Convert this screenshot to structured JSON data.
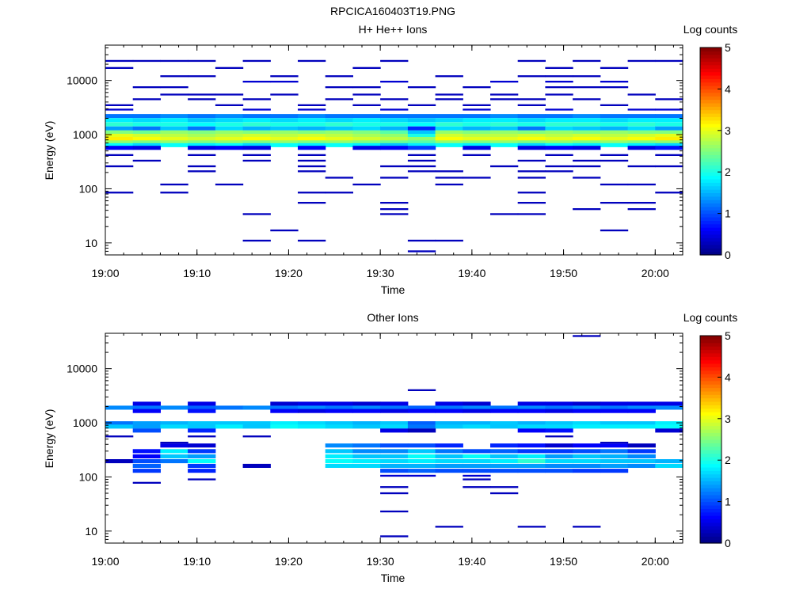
{
  "figure_title": "RPCICA160403T19.PNG",
  "chart_data": [
    {
      "type": "heatmap",
      "title": "H+ He++ Ions",
      "xlabel": "Time",
      "ylabel": "Energy (eV)",
      "xlim": [
        "19:00",
        "20:03"
      ],
      "x_ticks": [
        "19:00",
        "19:10",
        "19:20",
        "19:30",
        "19:40",
        "19:50",
        "20:00"
      ],
      "ylim": [
        6,
        45000
      ],
      "yscale": "log",
      "y_ticks": [
        "10",
        "100",
        "1000",
        "10000"
      ],
      "colorbar": {
        "label": "Log counts",
        "range": [
          0,
          5
        ],
        "ticks": [
          "0",
          "1",
          "2",
          "3",
          "4",
          "5"
        ]
      },
      "time_bins": [
        "19:00",
        "19:03",
        "19:06",
        "19:09",
        "19:12",
        "19:15",
        "19:18",
        "19:21",
        "19:24",
        "19:27",
        "19:30",
        "19:33",
        "19:36",
        "19:39",
        "19:42",
        "19:45",
        "19:48",
        "19:51",
        "19:54",
        "19:57",
        "20:00"
      ],
      "rows": [
        {
          "e": 2200,
          "v": [
            1.2,
            1.2,
            1.3,
            1.2,
            1.3,
            1.2,
            1.2,
            1.3,
            1.2,
            1.2,
            1.2,
            1.2,
            1.2,
            1.2,
            1.3,
            1.2,
            1.2,
            1.3,
            1.2,
            1.2,
            1.2
          ]
        },
        {
          "e": 1850,
          "v": [
            1.8,
            1.7,
            1.8,
            1.6,
            1.7,
            1.8,
            1.7,
            1.8,
            1.7,
            1.8,
            1.7,
            1.6,
            1.7,
            1.8,
            1.8,
            1.7,
            1.8,
            1.8,
            1.7,
            1.8,
            1.8
          ]
        },
        {
          "e": 1550,
          "v": [
            2.1,
            2.0,
            2.0,
            1.9,
            2.0,
            2.1,
            2.0,
            2.0,
            2.1,
            2.0,
            2.0,
            1.9,
            2.1,
            2.0,
            2.1,
            2.0,
            2.1,
            2.1,
            2.0,
            2.1,
            2.0
          ]
        },
        {
          "e": 1300,
          "v": [
            1.4,
            1.2,
            1.6,
            1.2,
            1.7,
            1.5,
            1.6,
            1.5,
            1.6,
            1.7,
            1.5,
            0.8,
            1.7,
            1.5,
            1.6,
            1.2,
            1.7,
            1.6,
            1.5,
            1.7,
            1.4
          ]
        },
        {
          "e": 1100,
          "v": [
            2.5,
            2.4,
            2.6,
            2.5,
            2.6,
            2.5,
            2.6,
            2.5,
            2.6,
            2.5,
            2.3,
            1.6,
            2.6,
            2.5,
            2.6,
            2.5,
            2.6,
            2.5,
            2.6,
            2.5,
            2.5
          ]
        },
        {
          "e": 950,
          "v": [
            3.0,
            2.9,
            2.8,
            2.7,
            2.8,
            2.9,
            2.8,
            2.9,
            2.8,
            2.7,
            2.6,
            2.0,
            2.9,
            2.8,
            2.8,
            2.9,
            2.8,
            2.9,
            2.8,
            2.9,
            3.0
          ]
        },
        {
          "e": 830,
          "v": [
            3.2,
            3.1,
            3.0,
            2.9,
            3.0,
            3.1,
            3.0,
            3.1,
            3.0,
            2.9,
            2.8,
            2.6,
            3.1,
            3.0,
            3.0,
            3.1,
            3.0,
            3.1,
            3.0,
            3.1,
            3.2
          ]
        },
        {
          "e": 720,
          "v": [
            2.6,
            2.5,
            2.6,
            2.5,
            2.6,
            2.5,
            2.6,
            2.5,
            2.6,
            2.5,
            2.4,
            2.3,
            2.6,
            2.5,
            2.6,
            2.5,
            2.6,
            2.5,
            2.6,
            2.5,
            2.6
          ]
        },
        {
          "e": 640,
          "v": [
            1.9,
            1.7,
            1.9,
            1.8,
            1.9,
            1.7,
            1.9,
            1.8,
            1.9,
            1.8,
            1.6,
            1.8,
            1.9,
            1.8,
            1.9,
            1.7,
            1.9,
            1.8,
            1.9,
            1.8,
            1.7
          ]
        },
        {
          "e": 570,
          "v": [
            0.6,
            0.5,
            null,
            0.5,
            0.6,
            0.5,
            null,
            0.6,
            null,
            0.5,
            0.6,
            0.9,
            null,
            0.5,
            null,
            0.5,
            0.6,
            0.5,
            null,
            0.5,
            0.7
          ]
        }
      ],
      "sparse": [
        {
          "e": 23000,
          "t": [
            0,
            1,
            2,
            3,
            5,
            7,
            10,
            15,
            17,
            19,
            20
          ],
          "v": 0.3
        },
        {
          "e": 17000,
          "t": [
            0,
            4,
            9,
            16,
            18
          ],
          "v": 0.3
        },
        {
          "e": 12000,
          "t": [
            2,
            3,
            6,
            8,
            12,
            15,
            16,
            17
          ],
          "v": 0.3
        },
        {
          "e": 9500,
          "t": [
            5,
            6,
            10,
            14,
            16,
            18
          ],
          "v": 0.4
        },
        {
          "e": 7500,
          "t": [
            1,
            2,
            8,
            9,
            11,
            13,
            16,
            17,
            18
          ],
          "v": 0.3
        },
        {
          "e": 5500,
          "t": [
            2,
            3,
            4,
            6,
            9,
            12,
            14,
            16,
            19
          ],
          "v": 0.3
        },
        {
          "e": 4500,
          "t": [
            1,
            3,
            5,
            8,
            10,
            12,
            14,
            15,
            17,
            20
          ],
          "v": 0.3
        },
        {
          "e": 3500,
          "t": [
            0,
            4,
            7,
            9,
            11,
            13,
            15,
            18
          ],
          "v": 0.3
        },
        {
          "e": 2900,
          "t": [
            0,
            5,
            7,
            10,
            13,
            16,
            19,
            20
          ],
          "v": 0.4
        },
        {
          "e": 420,
          "t": [
            0,
            3,
            5,
            7,
            11,
            13,
            16,
            18,
            20
          ],
          "v": 0.3
        },
        {
          "e": 330,
          "t": [
            1,
            5,
            7,
            11,
            15,
            17,
            18
          ],
          "v": 0.3
        },
        {
          "e": 260,
          "t": [
            0,
            3,
            7,
            10,
            11,
            14,
            16,
            17,
            19,
            20
          ],
          "v": 0.3
        },
        {
          "e": 210,
          "t": [
            3,
            7,
            11,
            12,
            15,
            16
          ],
          "v": 0.3
        },
        {
          "e": 160,
          "t": [
            8,
            10,
            12,
            13,
            15,
            17
          ],
          "v": 0.3
        },
        {
          "e": 120,
          "t": [
            2,
            4,
            9,
            12,
            18,
            19
          ],
          "v": 0.3
        },
        {
          "e": 85,
          "t": [
            0,
            2,
            7,
            8,
            15,
            20
          ],
          "v": 0.3
        },
        {
          "e": 55,
          "t": [
            7,
            10,
            15,
            18,
            19
          ],
          "v": 0.3
        },
        {
          "e": 42,
          "t": [
            10,
            17,
            19
          ],
          "v": 0.3
        },
        {
          "e": 34,
          "t": [
            5,
            10,
            14,
            15
          ],
          "v": 0.3
        },
        {
          "e": 17,
          "t": [
            6,
            18
          ],
          "v": 0.3
        },
        {
          "e": 11,
          "t": [
            5,
            7,
            11,
            12
          ],
          "v": 0.3
        },
        {
          "e": 7,
          "t": [
            11
          ],
          "v": 0.3
        }
      ]
    },
    {
      "type": "heatmap",
      "title": "Other Ions",
      "xlabel": "Time",
      "ylabel": "Energy (eV)",
      "xlim": [
        "19:00",
        "20:03"
      ],
      "x_ticks": [
        "19:00",
        "19:10",
        "19:20",
        "19:30",
        "19:40",
        "19:50",
        "20:00"
      ],
      "ylim": [
        6,
        45000
      ],
      "yscale": "log",
      "y_ticks": [
        "10",
        "100",
        "1000",
        "10000"
      ],
      "colorbar": {
        "label": "Log counts",
        "range": [
          0,
          5
        ],
        "ticks": [
          "0",
          "1",
          "2",
          "3",
          "4",
          "5"
        ]
      },
      "time_bins": [
        "19:00",
        "19:03",
        "19:06",
        "19:09",
        "19:12",
        "19:15",
        "19:18",
        "19:21",
        "19:24",
        "19:27",
        "19:30",
        "19:33",
        "19:36",
        "19:39",
        "19:42",
        "19:45",
        "19:48",
        "19:51",
        "19:54",
        "19:57",
        "20:00"
      ],
      "rows": [
        {
          "e": 2250,
          "v": [
            null,
            0.5,
            null,
            0.5,
            null,
            null,
            0.4,
            0.5,
            0.5,
            0.4,
            0.5,
            null,
            0.5,
            0.4,
            null,
            0.5,
            0.5,
            0.4,
            0.5,
            0.5,
            0.5
          ]
        },
        {
          "e": 1900,
          "v": [
            1.3,
            1.2,
            1.3,
            1.1,
            1.2,
            1.3,
            1.2,
            1.3,
            1.2,
            1.3,
            1.2,
            1.1,
            1.2,
            1.3,
            1.2,
            1.3,
            1.2,
            1.3,
            1.2,
            1.3,
            1.3
          ]
        },
        {
          "e": 1650,
          "v": [
            null,
            0.6,
            null,
            0.7,
            null,
            null,
            0.6,
            0.5,
            0.6,
            0.6,
            0.5,
            0.6,
            0.6,
            0.5,
            0.6,
            0.6,
            0.5,
            0.6,
            0.6,
            0.6,
            null
          ]
        },
        {
          "e": 980,
          "v": [
            1.2,
            1.4,
            1.5,
            1.6,
            1.6,
            1.6,
            1.8,
            1.7,
            1.6,
            1.5,
            1.6,
            1.1,
            1.5,
            1.5,
            1.6,
            1.5,
            1.6,
            1.7,
            1.6,
            1.6,
            1.8
          ]
        },
        {
          "e": 850,
          "v": [
            1.6,
            1.4,
            1.7,
            1.6,
            1.8,
            1.6,
            1.9,
            1.8,
            1.7,
            1.6,
            1.7,
            1.2,
            1.6,
            1.7,
            1.6,
            1.7,
            1.7,
            1.8,
            1.8,
            1.8,
            1.9
          ]
        },
        {
          "e": 720,
          "v": [
            null,
            1.0,
            null,
            0.8,
            null,
            null,
            null,
            null,
            null,
            null,
            0.5,
            0.3,
            null,
            null,
            null,
            0.6,
            0.7,
            null,
            null,
            null,
            0.4
          ]
        },
        {
          "e": 380,
          "v": [
            null,
            null,
            0.5,
            0.4,
            null,
            null,
            null,
            null,
            1.3,
            1.2,
            1.0,
            1.0,
            0.8,
            null,
            0.8,
            0.7,
            0.4,
            0.6,
            0.6,
            0.3,
            null
          ]
        },
        {
          "e": 300,
          "v": [
            null,
            0.7,
            1.8,
            0.9,
            null,
            null,
            null,
            null,
            1.6,
            1.3,
            1.3,
            1.6,
            1.2,
            1.0,
            1.1,
            0.9,
            0.9,
            1.0,
            1.2,
            0.9,
            null
          ]
        },
        {
          "e": 240,
          "v": [
            null,
            0.6,
            1.6,
            1.4,
            null,
            null,
            null,
            null,
            1.8,
            1.6,
            1.6,
            1.9,
            1.6,
            1.9,
            1.6,
            1.8,
            1.4,
            1.6,
            1.5,
            1.3,
            null
          ]
        },
        {
          "e": 195,
          "v": [
            0.3,
            1.0,
            1.2,
            1.9,
            null,
            null,
            null,
            null,
            1.9,
            1.8,
            1.7,
            1.8,
            1.7,
            1.7,
            1.8,
            2.1,
            1.7,
            1.7,
            1.6,
            1.6,
            1.5
          ]
        },
        {
          "e": 160,
          "v": [
            null,
            1.1,
            null,
            0.9,
            null,
            0.3,
            null,
            null,
            1.7,
            1.7,
            1.5,
            1.5,
            1.4,
            1.4,
            1.4,
            1.4,
            1.3,
            1.3,
            1.4,
            1.3,
            1.7
          ]
        },
        {
          "e": 130,
          "v": [
            null,
            0.9,
            null,
            0.8,
            null,
            null,
            null,
            null,
            null,
            null,
            1.0,
            1.1,
            1.0,
            1.0,
            1.0,
            1.0,
            1.0,
            0.9,
            0.9,
            null,
            null
          ]
        }
      ],
      "sparse": [
        {
          "e": 40000,
          "t": [
            17
          ],
          "v": 0.3
        },
        {
          "e": 4000,
          "t": [
            11
          ],
          "v": 0.3
        },
        {
          "e": 560,
          "t": [
            0,
            3,
            5,
            16
          ],
          "v": 0.3
        },
        {
          "e": 430,
          "t": [
            2,
            18
          ],
          "v": 0.3
        },
        {
          "e": 105,
          "t": [
            10,
            11,
            13
          ],
          "v": 0.4
        },
        {
          "e": 90,
          "t": [
            3,
            13
          ],
          "v": 0.3
        },
        {
          "e": 78,
          "t": [
            1
          ],
          "v": 0.3
        },
        {
          "e": 65,
          "t": [
            10,
            13,
            14
          ],
          "v": 0.3
        },
        {
          "e": 50,
          "t": [
            10,
            14
          ],
          "v": 0.3
        },
        {
          "e": 23,
          "t": [
            10
          ],
          "v": 0.3
        },
        {
          "e": 12,
          "t": [
            12,
            15,
            17
          ],
          "v": 0.3
        },
        {
          "e": 8,
          "t": [
            10
          ],
          "v": 0.3
        }
      ]
    }
  ]
}
